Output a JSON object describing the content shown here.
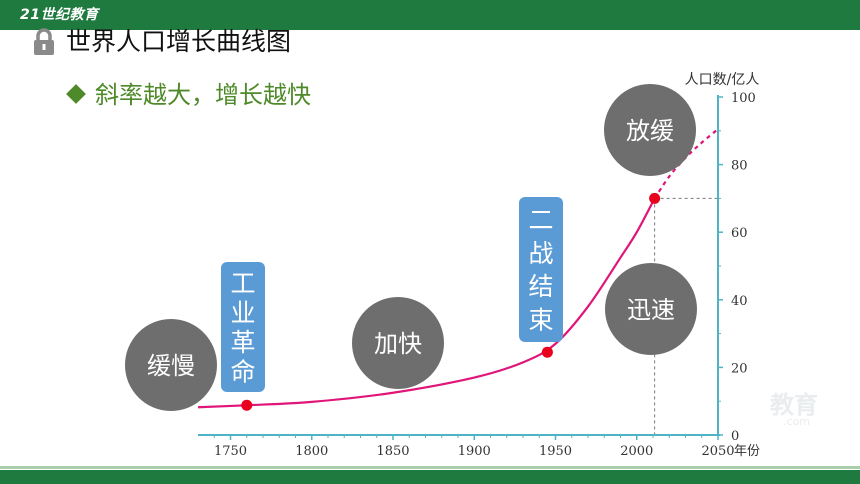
{
  "header": {
    "logo_text": "21世纪教育",
    "title": "世界人口增长曲线图"
  },
  "bullet_text": "斜率越大，增长越快",
  "watermark": "教育",
  "watermark_sub": ".com",
  "colors": {
    "theme_green": "#1f7a3f",
    "axis": "#4fb3c6",
    "curve": "#e0157a",
    "point": "#e8001c",
    "bubble": "#6e6e6e",
    "tag": "#5b9bd5",
    "bullet": "#4f8a2a"
  },
  "annotations": {
    "bubbles": [
      "缓慢",
      "加快",
      "迅速",
      "放缓"
    ],
    "tags": [
      "工业革命",
      "二战结束"
    ]
  },
  "chart_data": {
    "type": "line",
    "title": "",
    "xlabel": "年份",
    "ylabel": "人口数/亿人",
    "xlim": [
      1730,
      2050
    ],
    "ylim": [
      0,
      100
    ],
    "x_ticks": [
      "1750",
      "1800",
      "1850",
      "1900",
      "1950",
      "2000",
      "2050"
    ],
    "y_ticks": [
      "0",
      "20",
      "40",
      "60",
      "80",
      "100"
    ],
    "series": [
      {
        "style": "solid",
        "x": [
          1730,
          1760,
          1800,
          1850,
          1900,
          1930,
          1950,
          1970,
          1990,
          2000,
          2011
        ],
        "y": [
          8.2,
          8.8,
          9.8,
          12.5,
          17.0,
          21.5,
          27.0,
          38.0,
          52.5,
          60.0,
          70.0
        ]
      },
      {
        "style": "dashed",
        "x": [
          2011,
          2020,
          2030,
          2040,
          2050
        ],
        "y": [
          70.0,
          76.5,
          82.0,
          86.5,
          90.5
        ]
      }
    ],
    "highlighted_points": [
      {
        "x": 1760,
        "y": 8.8
      },
      {
        "x": 1945,
        "y": 24.5
      },
      {
        "x": 2011,
        "y": 70.0
      }
    ]
  }
}
